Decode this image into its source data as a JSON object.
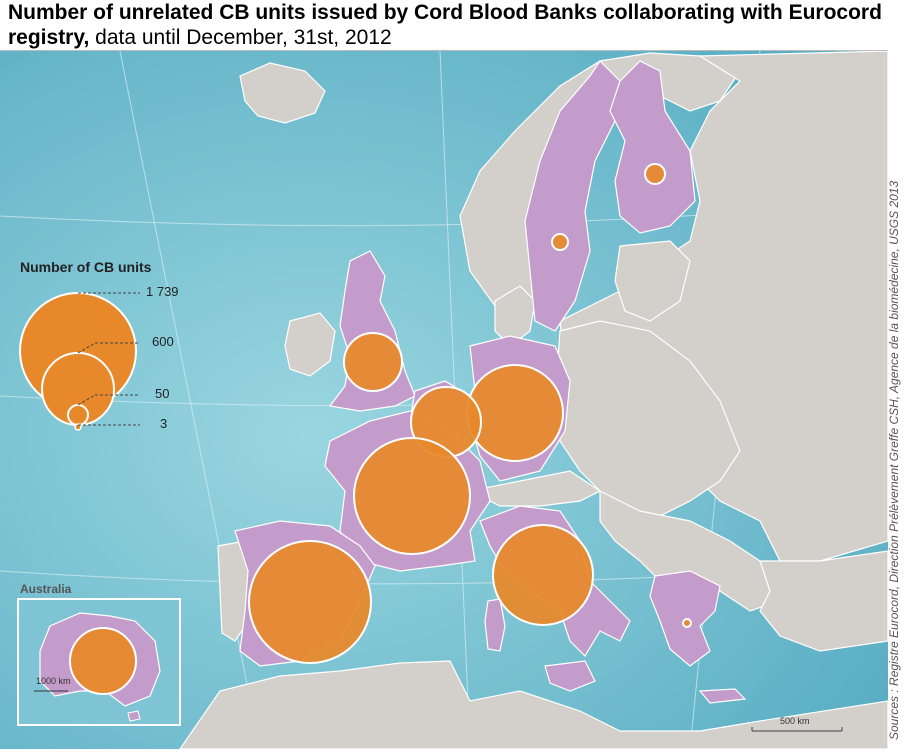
{
  "title": {
    "main": "Number of unrelated CB units issued by Cord Blood Banks collaborating with Eurocord registry,",
    "sub": "data until December, 31st, 2012"
  },
  "source": "Sources : Registre Eurocord,  Direction Prélèvement Greffe CSH, Agence de la biomédecine, USGS 2013",
  "legend": {
    "title": "Number of CB units",
    "items": [
      "1 739",
      "600",
      "50",
      "3"
    ]
  },
  "inset": {
    "title": "Australia",
    "scale": "1000 km"
  },
  "scale_bar": "500 km",
  "colors": {
    "sea": "#7ec4d4",
    "land": "#d3cfca",
    "collaborating": "#c49ccc",
    "bubble": "#e7892a",
    "bubble_stroke": "#ffffff"
  }
}
